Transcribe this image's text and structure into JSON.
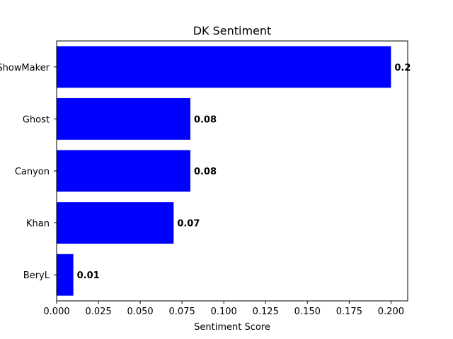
{
  "chart_data": {
    "type": "bar",
    "orientation": "horizontal",
    "title": "DK Sentiment",
    "xlabel": "Sentiment Score",
    "ylabel": "",
    "categories": [
      "ShowMaker",
      "Ghost",
      "Canyon",
      "Khan",
      "BeryL"
    ],
    "values": [
      0.2,
      0.08,
      0.08,
      0.07,
      0.01
    ],
    "value_labels": [
      "0.2",
      "0.08",
      "0.08",
      "0.07",
      "0.01"
    ],
    "xlim": [
      0,
      0.21
    ],
    "xticks": [
      0.0,
      0.025,
      0.05,
      0.075,
      0.1,
      0.125,
      0.15,
      0.175,
      0.2
    ],
    "xtick_labels": [
      "0.000",
      "0.025",
      "0.050",
      "0.075",
      "0.100",
      "0.125",
      "0.150",
      "0.175",
      "0.200"
    ],
    "bar_color": "#0000ff",
    "grid": false,
    "legend": "none"
  }
}
